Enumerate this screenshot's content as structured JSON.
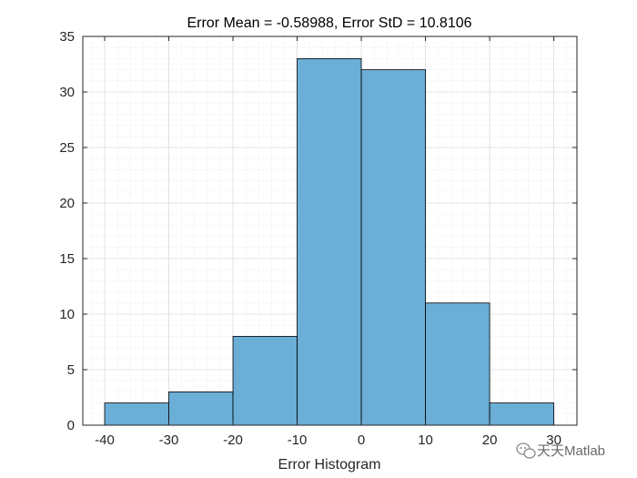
{
  "chart_data": {
    "type": "bar",
    "title": "Error Mean = -0.58988, Error StD = 10.8106",
    "xlabel": "Error Histogram",
    "ylabel": "",
    "bin_edges": [
      -40,
      -30,
      -20,
      -10,
      0,
      10,
      20,
      30
    ],
    "values": [
      2,
      3,
      8,
      33,
      32,
      11,
      2
    ],
    "xlim": [
      -43.4,
      33.6
    ],
    "ylim": [
      0,
      35
    ],
    "xticks": [
      -40,
      -30,
      -20,
      -10,
      0,
      10,
      20,
      30
    ],
    "yticks": [
      0,
      5,
      10,
      15,
      20,
      25,
      30,
      35
    ],
    "grid": true,
    "minor_grid": true,
    "bar_color": "#6baed6",
    "edge_color": "#000000"
  },
  "watermark": {
    "text": "天天Matlab",
    "icon": "wechat-icon"
  }
}
